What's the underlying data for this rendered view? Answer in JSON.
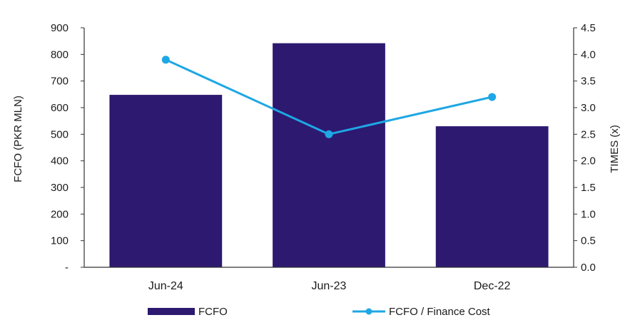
{
  "chart_data": {
    "type": "bar",
    "categories": [
      "Jun-24",
      "Jun-23",
      "Dec-22"
    ],
    "series": [
      {
        "name": "FCFO",
        "type": "bar",
        "axis": "left",
        "values": [
          648,
          842,
          530
        ]
      },
      {
        "name": "FCFO / Finance Cost",
        "type": "line",
        "axis": "right",
        "values": [
          3.9,
          2.5,
          3.2
        ]
      }
    ],
    "ylabel": "FCFO (PKR MLN)",
    "y2label": "TIMES (x)",
    "ylim": [
      0,
      900
    ],
    "y2lim": [
      0,
      4.5
    ],
    "yticks": [
      "-",
      "100",
      "200",
      "300",
      "400",
      "500",
      "600",
      "700",
      "800",
      "900"
    ],
    "y2ticks": [
      "0.0",
      "0.5",
      "1.0",
      "1.5",
      "2.0",
      "2.5",
      "3.0",
      "3.5",
      "4.0",
      "4.5"
    ],
    "grid": false,
    "legend": "bottom",
    "colors": {
      "bar": "#2d1970",
      "line": "#1ea7e4",
      "axis": "#333333"
    }
  }
}
